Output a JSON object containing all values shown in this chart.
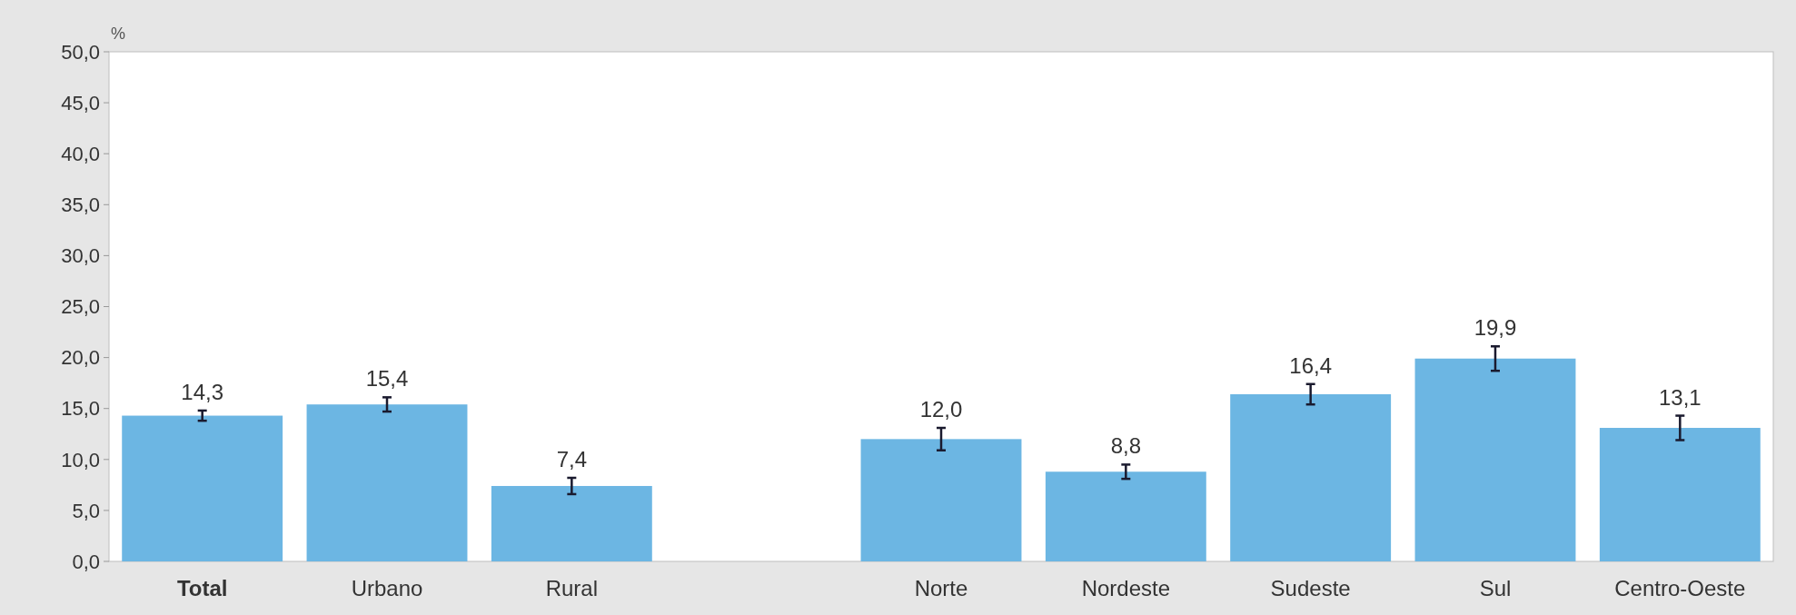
{
  "chart_data": {
    "type": "bar",
    "ylabel": "%",
    "categories": [
      "Total",
      "Urbano",
      "Rural",
      null,
      "Norte",
      "Nordeste",
      "Sudeste",
      "Sul",
      "Centro-Oeste"
    ],
    "values": [
      14.3,
      15.4,
      7.4,
      null,
      12.0,
      8.8,
      16.4,
      19.9,
      13.1
    ],
    "errors": [
      0.5,
      0.7,
      0.8,
      null,
      1.1,
      0.7,
      1.0,
      1.2,
      1.2
    ],
    "value_labels": [
      "14,3",
      "15,4",
      "7,4",
      null,
      "12,0",
      "8,8",
      "16,4",
      "19,9",
      "13,1"
    ],
    "color": "#6cb6e3",
    "ylim": [
      0,
      50
    ],
    "yticks": [
      {
        "value": 0,
        "label": "0,0"
      },
      {
        "value": 5,
        "label": "5,0"
      },
      {
        "value": 10,
        "label": "10,0"
      },
      {
        "value": 15,
        "label": "15,0"
      },
      {
        "value": 20,
        "label": "20,0"
      },
      {
        "value": 25,
        "label": "25,0"
      },
      {
        "value": 30,
        "label": "30,0"
      },
      {
        "value": 35,
        "label": "35,0"
      },
      {
        "value": 40,
        "label": "40,0"
      },
      {
        "value": 45,
        "label": "45,0"
      },
      {
        "value": 50,
        "label": "50,0"
      }
    ],
    "grid": false
  }
}
